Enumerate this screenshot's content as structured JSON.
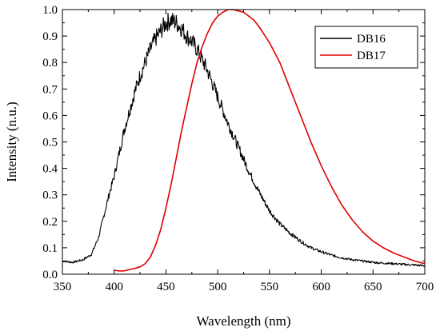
{
  "chart_data": {
    "type": "line",
    "title": "",
    "xlabel": "Wavelength (nm)",
    "ylabel": "Intensity (n.u.)",
    "xlim": [
      350,
      700
    ],
    "ylim": [
      0.0,
      1.0
    ],
    "xticks": [
      350,
      400,
      450,
      500,
      550,
      600,
      650,
      700
    ],
    "yticks": [
      0.0,
      0.1,
      0.2,
      0.3,
      0.4,
      0.5,
      0.6,
      0.7,
      0.8,
      0.9,
      1.0
    ],
    "xtick_labels": [
      "350",
      "400",
      "450",
      "500",
      "550",
      "600",
      "650",
      "700"
    ],
    "ytick_labels": [
      "0.0",
      "0.1",
      "0.2",
      "0.3",
      "0.4",
      "0.5",
      "0.6",
      "0.7",
      "0.8",
      "0.9",
      "1.0"
    ],
    "grid": false,
    "legend_position": "top-right",
    "series": [
      {
        "name": "DB16",
        "color": "#000000",
        "noisy": true,
        "x": [
          350,
          360,
          370,
          378,
          385,
          390,
          395,
          400,
          405,
          410,
          415,
          420,
          425,
          430,
          435,
          440,
          445,
          450,
          455,
          460,
          465,
          470,
          475,
          480,
          485,
          490,
          495,
          500,
          510,
          520,
          530,
          540,
          550,
          560,
          570,
          580,
          590,
          600,
          610,
          620,
          630,
          640,
          650,
          660,
          670,
          680,
          690,
          700
        ],
        "y": [
          0.05,
          0.045,
          0.055,
          0.075,
          0.14,
          0.22,
          0.3,
          0.37,
          0.46,
          0.55,
          0.62,
          0.69,
          0.75,
          0.8,
          0.85,
          0.89,
          0.92,
          0.95,
          0.96,
          0.95,
          0.93,
          0.9,
          0.88,
          0.85,
          0.81,
          0.77,
          0.72,
          0.67,
          0.57,
          0.48,
          0.39,
          0.31,
          0.24,
          0.19,
          0.155,
          0.125,
          0.1,
          0.085,
          0.072,
          0.062,
          0.055,
          0.05,
          0.045,
          0.042,
          0.04,
          0.037,
          0.035,
          0.032
        ]
      },
      {
        "name": "DB17",
        "color": "#e00000",
        "noisy": false,
        "x": [
          400,
          405,
          410,
          415,
          420,
          425,
          430,
          435,
          440,
          445,
          450,
          455,
          460,
          465,
          470,
          475,
          480,
          485,
          490,
          495,
          500,
          505,
          510,
          515,
          520,
          525,
          530,
          535,
          540,
          545,
          550,
          560,
          570,
          580,
          590,
          600,
          610,
          620,
          630,
          640,
          650,
          660,
          670,
          680,
          690,
          700
        ],
        "y": [
          0.015,
          0.012,
          0.013,
          0.018,
          0.022,
          0.028,
          0.04,
          0.065,
          0.11,
          0.17,
          0.25,
          0.34,
          0.44,
          0.54,
          0.63,
          0.72,
          0.8,
          0.86,
          0.91,
          0.95,
          0.975,
          0.99,
          1.0,
          1.0,
          0.995,
          0.99,
          0.975,
          0.96,
          0.935,
          0.905,
          0.875,
          0.8,
          0.7,
          0.6,
          0.5,
          0.41,
          0.33,
          0.26,
          0.205,
          0.16,
          0.125,
          0.1,
          0.08,
          0.065,
          0.05,
          0.04
        ]
      }
    ]
  }
}
